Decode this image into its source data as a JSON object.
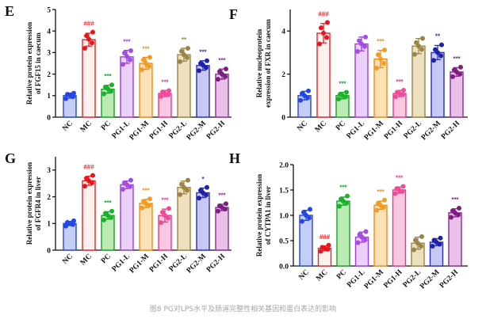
{
  "caption": "图8 PG对LPS水平及肠道完整性相关基因和蛋白表达的影响",
  "colors": [
    {
      "fill": "#c4cef6",
      "stroke": "#2e44c6",
      "dot": "#2346e8"
    },
    {
      "fill": "#fff0f0",
      "stroke": "#e2262b",
      "dot": "#e8161c"
    },
    {
      "fill": "#b8ecb2",
      "stroke": "#1e9e2a",
      "dot": "#19b329"
    },
    {
      "fill": "#ead0fb",
      "stroke": "#9b3fd6",
      "dot": "#a64be6"
    },
    {
      "fill": "#fde0b4",
      "stroke": "#ea8e19",
      "dot": "#f49b22"
    },
    {
      "fill": "#f9c8e0",
      "stroke": "#e0388c",
      "dot": "#ef4b9b"
    },
    {
      "fill": "#ece0be",
      "stroke": "#9c8443",
      "dot": "#9c8346"
    },
    {
      "fill": "#c6c8f6",
      "stroke": "#2a2fb0",
      "dot": "#1d22a8"
    },
    {
      "fill": "#e8c0ea",
      "stroke": "#8b2c8e",
      "dot": "#7c1f80"
    }
  ],
  "chart_data": [
    {
      "panel": "E",
      "type": "bar",
      "ylabel": [
        "Relative protein expression",
        "of FGF15 in caecum"
      ],
      "categories": [
        "NC",
        "MC",
        "PC",
        "PG1-L",
        "PG1-M",
        "PG1-H",
        "PG2-L",
        "PG2-M",
        "PG2-H"
      ],
      "values": [
        1.0,
        3.6,
        1.3,
        2.8,
        2.5,
        1.1,
        2.9,
        2.4,
        2.0
      ],
      "errors": [
        0.12,
        0.3,
        0.18,
        0.3,
        0.28,
        0.14,
        0.3,
        0.22,
        0.24
      ],
      "points": [
        [
          0.86,
          0.95,
          1.02,
          1.06,
          1.11
        ],
        [
          3.2,
          3.45,
          3.62,
          3.78,
          3.95
        ],
        [
          1.08,
          1.2,
          1.32,
          1.4,
          1.5
        ],
        [
          2.45,
          2.66,
          2.82,
          2.98,
          3.09
        ],
        [
          2.2,
          2.36,
          2.5,
          2.66,
          2.78
        ],
        [
          0.96,
          1.04,
          1.1,
          1.17,
          1.23
        ],
        [
          2.58,
          2.76,
          2.9,
          3.06,
          3.2
        ],
        [
          2.16,
          2.3,
          2.42,
          2.5,
          2.62
        ],
        [
          1.76,
          1.88,
          2.0,
          2.12,
          2.24
        ]
      ],
      "significance": [
        "",
        "###",
        "***",
        "***",
        "***",
        "***",
        "**",
        "***",
        "***"
      ],
      "ylim": [
        0,
        5
      ],
      "yticks": [
        0,
        1,
        2,
        3,
        4,
        5
      ],
      "ytick_labels": [
        "0",
        "1",
        "2",
        "3",
        "4",
        "5"
      ],
      "grid": false
    },
    {
      "panel": "F",
      "type": "bar",
      "ylabel": [
        "Relative nucleoprotein",
        "expression of FXR in caecum"
      ],
      "categories": [
        "NC",
        "MC",
        "PC",
        "PG1-L",
        "PG1-M",
        "PG1-H",
        "PG2-L",
        "PG2-M",
        "PG2-H"
      ],
      "values": [
        1.0,
        3.9,
        1.0,
        3.4,
        2.7,
        1.1,
        3.3,
        3.0,
        2.1
      ],
      "errors": [
        0.2,
        0.45,
        0.15,
        0.32,
        0.4,
        0.14,
        0.35,
        0.33,
        0.2
      ],
      "points": [
        [
          0.78,
          0.9,
          1.0,
          1.1,
          1.22
        ],
        [
          3.4,
          3.7,
          3.9,
          4.15,
          4.4
        ],
        [
          0.84,
          0.94,
          1.0,
          1.06,
          1.16
        ],
        [
          3.05,
          3.28,
          3.4,
          3.55,
          3.72
        ],
        [
          2.28,
          2.5,
          2.7,
          2.9,
          3.12
        ],
        [
          0.95,
          1.04,
          1.1,
          1.16,
          1.25
        ],
        [
          2.92,
          3.15,
          3.3,
          3.46,
          3.66
        ],
        [
          2.64,
          2.85,
          3.0,
          3.14,
          3.36
        ],
        [
          1.88,
          2.0,
          2.1,
          2.2,
          2.32
        ]
      ],
      "significance": [
        "",
        "###",
        "***",
        "",
        "***",
        "***",
        "",
        "**",
        "***"
      ],
      "ylim": [
        0,
        5
      ],
      "yticks": [
        0,
        2,
        4
      ],
      "ytick_labels": [
        "0",
        "2",
        "4"
      ],
      "grid": false
    },
    {
      "panel": "G",
      "type": "bar",
      "ylabel": [
        "Relative protein expression",
        "of FGFR4 in liver"
      ],
      "categories": [
        "NC",
        "MC",
        "PC",
        "PG1-L",
        "PG1-M",
        "PG1-H",
        "PG2-L",
        "PG2-M",
        "PG2-H"
      ],
      "values": [
        1.0,
        2.6,
        1.3,
        2.45,
        1.75,
        1.3,
        2.35,
        2.15,
        1.6
      ],
      "errors": [
        0.08,
        0.17,
        0.14,
        0.14,
        0.15,
        0.24,
        0.24,
        0.18,
        0.12
      ],
      "points": [
        [
          0.9,
          0.96,
          1.0,
          1.04,
          1.1
        ],
        [
          2.4,
          2.52,
          2.6,
          2.69,
          2.8
        ],
        [
          1.13,
          1.22,
          1.3,
          1.38,
          1.46
        ],
        [
          2.28,
          2.38,
          2.45,
          2.53,
          2.62
        ],
        [
          1.58,
          1.68,
          1.75,
          1.83,
          1.92
        ],
        [
          1.03,
          1.2,
          1.3,
          1.42,
          1.56
        ],
        [
          2.08,
          2.24,
          2.35,
          2.47,
          2.62
        ],
        [
          1.95,
          2.07,
          2.15,
          2.24,
          2.35
        ],
        [
          1.46,
          1.54,
          1.6,
          1.66,
          1.74
        ]
      ],
      "significance": [
        "",
        "###",
        "***",
        "",
        "***",
        "***",
        "",
        "*",
        "***"
      ],
      "ylim": [
        0,
        3.5
      ],
      "yticks": [
        0,
        1,
        2,
        3
      ],
      "ytick_labels": [
        "0",
        "1",
        "2",
        "3"
      ],
      "grid": false
    },
    {
      "panel": "H",
      "type": "bar",
      "ylabel": [
        "Relative protein expression",
        "of CYTPA1 in liver"
      ],
      "categories": [
        "NC",
        "MC",
        "PC",
        "PG1-L",
        "PG1-M",
        "PG1-H",
        "PG2-L",
        "PG2-M",
        "PG2-H"
      ],
      "values": [
        1.0,
        0.35,
        1.28,
        0.57,
        1.2,
        1.5,
        0.45,
        0.47,
        1.05
      ],
      "errors": [
        0.1,
        0.05,
        0.08,
        0.1,
        0.08,
        0.06,
        0.12,
        0.07,
        0.08
      ],
      "points": [
        [
          0.88,
          0.95,
          1.0,
          1.06,
          1.12
        ],
        [
          0.29,
          0.33,
          0.35,
          0.37,
          0.41
        ],
        [
          1.18,
          1.24,
          1.28,
          1.32,
          1.38
        ],
        [
          0.46,
          0.52,
          0.57,
          0.62,
          0.68
        ],
        [
          1.1,
          1.16,
          1.2,
          1.24,
          1.3
        ],
        [
          1.43,
          1.47,
          1.5,
          1.53,
          1.57
        ],
        [
          0.32,
          0.39,
          0.45,
          0.51,
          0.58
        ],
        [
          0.39,
          0.43,
          0.47,
          0.51,
          0.55
        ],
        [
          0.96,
          1.01,
          1.05,
          1.09,
          1.14
        ]
      ],
      "significance": [
        "",
        "###",
        "***",
        "",
        "***",
        "***",
        "",
        "",
        "***"
      ],
      "ylim": [
        0,
        2
      ],
      "yticks": [
        0,
        0.5,
        1,
        1.5,
        2
      ],
      "ytick_labels": [
        "0.0",
        "0.5",
        "1.0",
        "1.5",
        "2.0"
      ],
      "grid": false
    }
  ]
}
